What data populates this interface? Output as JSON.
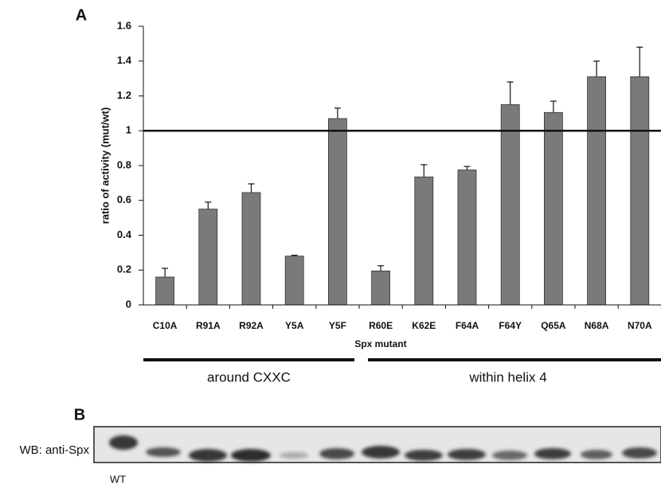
{
  "chart_data": {
    "type": "bar",
    "panel_label": "A",
    "y_label": "ratio of activity (mut/wt)",
    "x_label": "Spx mutant",
    "categories": [
      "C10A",
      "R91A",
      "R92A",
      "Y5A",
      "Y5F",
      "R60E",
      "K62E",
      "F64A",
      "F64Y",
      "Q65A",
      "N68A",
      "N70A"
    ],
    "values": [
      0.16,
      0.55,
      0.645,
      0.28,
      1.07,
      0.195,
      0.735,
      0.775,
      1.15,
      1.105,
      1.31,
      1.31
    ],
    "errors": [
      0.05,
      0.04,
      0.05,
      0.005,
      0.06,
      0.03,
      0.07,
      0.02,
      0.13,
      0.065,
      0.09,
      0.17
    ],
    "color": "#7a7a7a",
    "reference_line": 1,
    "ylim": [
      0,
      1.6
    ],
    "yticks": [
      0,
      0.2,
      0.4,
      0.6,
      0.8,
      1,
      1.2,
      1.4,
      1.6
    ],
    "group_labels": [
      "around CXXC",
      "within helix 4"
    ]
  },
  "panel_b": {
    "label": "B",
    "row_label": "WB: anti-Spx",
    "lane_label": "WT"
  }
}
